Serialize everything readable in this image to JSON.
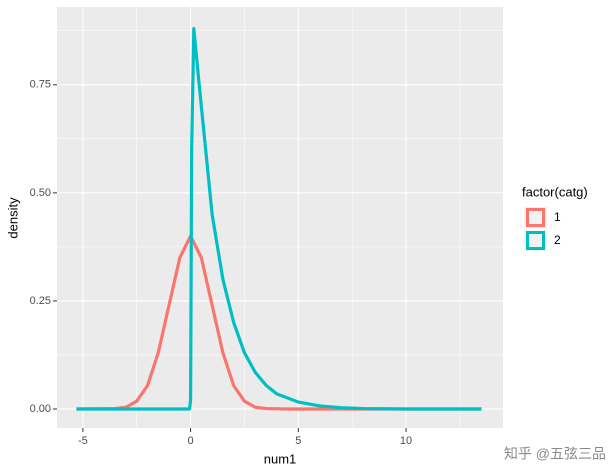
{
  "chart_data": {
    "type": "line",
    "x_label": "num1",
    "y_label": "density",
    "legend_title": "factor(catg)",
    "legend_position": "right",
    "watermark": "知乎 @五弦三品",
    "grid": true,
    "xlim": [
      -6.2,
      14.5
    ],
    "ylim": [
      -0.044,
      0.93
    ],
    "xticks": [
      -5,
      0,
      5,
      10
    ],
    "yticks": [
      {
        "value": 0,
        "label": "0.00"
      },
      {
        "value": 0.25,
        "label": "0.25"
      },
      {
        "value": 0.5,
        "label": "0.50"
      },
      {
        "value": 0.75,
        "label": "0.75"
      }
    ],
    "x_minor_breaks": [
      -2.5,
      2.5,
      7.5,
      12.5
    ],
    "y_minor_breaks": [
      0.125,
      0.375,
      0.625,
      0.875
    ],
    "series": [
      {
        "name": "1",
        "color": "#F8766D",
        "x": [
          -5.3,
          -3.5,
          -3,
          -2.5,
          -2,
          -1.5,
          -1,
          -0.5,
          0,
          0.5,
          1,
          1.5,
          2,
          2.5,
          3,
          3.5,
          4.5,
          13.5
        ],
        "values": [
          0,
          0.001,
          0.004,
          0.018,
          0.054,
          0.13,
          0.24,
          0.35,
          0.4,
          0.35,
          0.24,
          0.13,
          0.054,
          0.018,
          0.004,
          0.001,
          0,
          0
        ]
      },
      {
        "name": "2",
        "color": "#00BFC4",
        "x": [
          -5.3,
          -0.05,
          0,
          0.05,
          0.15,
          0.4,
          0.7,
          1,
          1.5,
          2,
          2.5,
          3,
          3.5,
          4,
          5,
          6,
          7,
          8,
          10,
          13.5
        ],
        "values": [
          0,
          0,
          0.02,
          0.6,
          0.88,
          0.75,
          0.6,
          0.45,
          0.3,
          0.2,
          0.13,
          0.085,
          0.055,
          0.035,
          0.016,
          0.007,
          0.003,
          0.001,
          0,
          0
        ]
      }
    ]
  }
}
